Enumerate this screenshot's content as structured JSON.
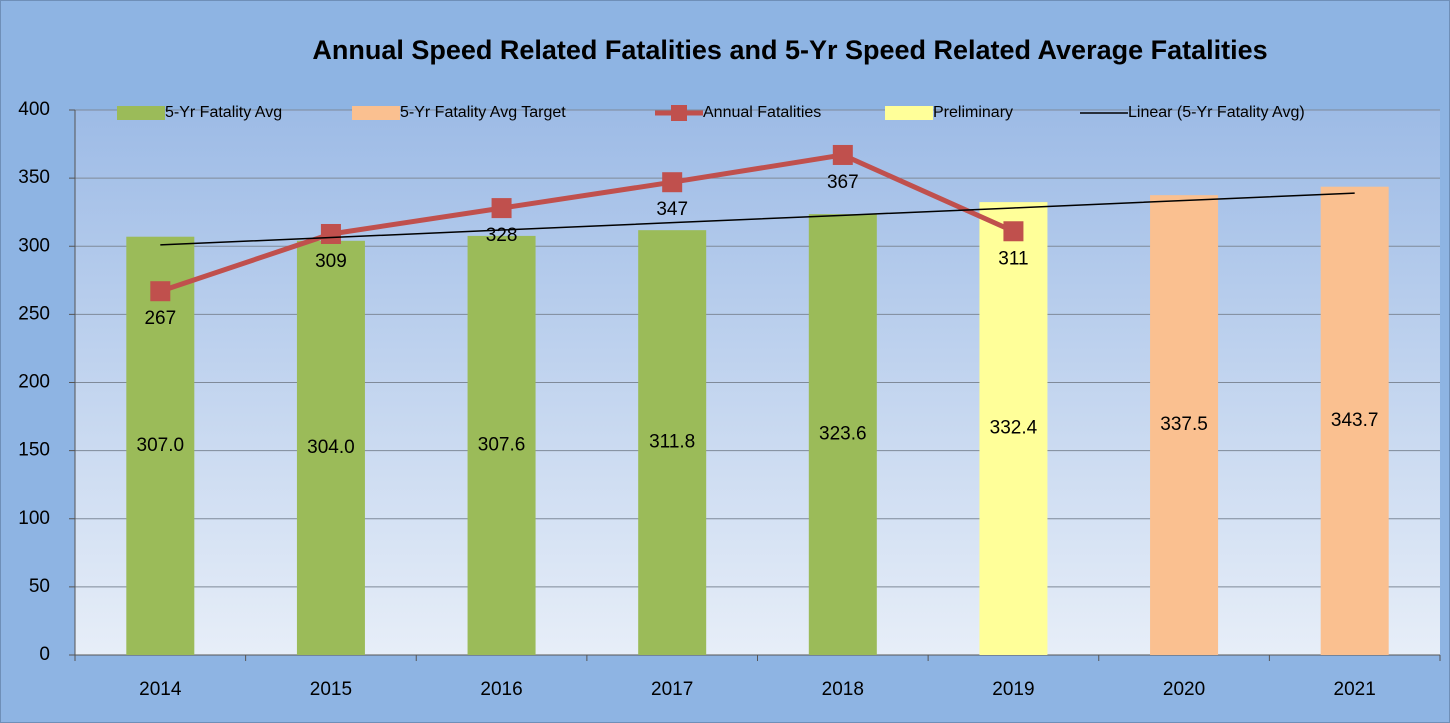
{
  "chart_data": {
    "type": "bar",
    "title": "Annual Speed Related Fatalities and 5-Yr Speed Related Average Fatalities",
    "categories": [
      "2014",
      "2015",
      "2016",
      "2017",
      "2018",
      "2019",
      "2020",
      "2021"
    ],
    "ylim": [
      0,
      400
    ],
    "yticks": [
      0,
      50,
      100,
      150,
      200,
      250,
      300,
      350,
      400
    ],
    "grid": true,
    "legend": "top",
    "series": [
      {
        "name": "5-Yr Fatality Avg",
        "type": "bar",
        "color": "#9bbb59",
        "values": [
          307.0,
          304.0,
          307.6,
          311.8,
          323.6,
          null,
          null,
          null
        ],
        "value_labels": [
          "307.0",
          "304.0",
          "307.6",
          "311.8",
          "323.6",
          null,
          null,
          null
        ]
      },
      {
        "name": "5-Yr Fatality Avg Target",
        "type": "bar",
        "color": "#fac090",
        "values": [
          null,
          null,
          null,
          null,
          null,
          null,
          337.5,
          343.7
        ],
        "value_labels": [
          null,
          null,
          null,
          null,
          null,
          null,
          "337.5",
          "343.7"
        ]
      },
      {
        "name": "Annual Fatalities",
        "type": "line",
        "color": "#c0504d",
        "marker": "square",
        "show_labels": true,
        "values": [
          267,
          309,
          328,
          347,
          367,
          311,
          null,
          null
        ]
      },
      {
        "name": "Preliminary",
        "type": "bar",
        "color": "#ffff99",
        "values": [
          null,
          null,
          null,
          null,
          null,
          332.4,
          null,
          null
        ],
        "value_labels": [
          null,
          null,
          null,
          null,
          null,
          "332.4",
          null,
          null
        ]
      },
      {
        "name": "Linear (5-Yr Fatality Avg)",
        "type": "line",
        "color": "#000000",
        "show_labels": false,
        "values": [
          301,
          306.4,
          311.9,
          317.3,
          322.7,
          328.1,
          333.6,
          339
        ]
      }
    ]
  }
}
